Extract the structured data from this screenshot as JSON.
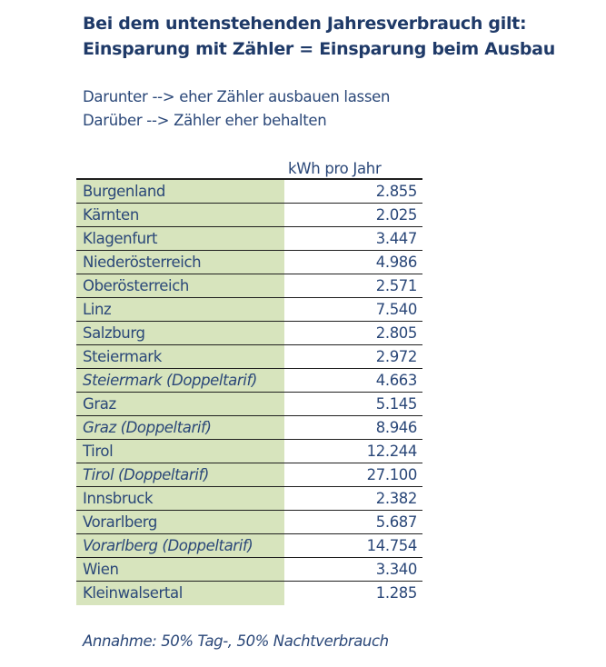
{
  "title": {
    "line1": "Bei dem untenstehenden Jahresverbrauch gilt:",
    "line2": "Einsparung mit Zähler = Einsparung beim Ausbau"
  },
  "intro": {
    "line1": "Darunter --> eher Zähler ausbauen lassen",
    "line2": "Darüber --> Zähler eher behalten"
  },
  "table": {
    "column_header": "kWh pro Jahr",
    "rows": [
      {
        "name": "Burgenland",
        "value": "2.855",
        "italic": false
      },
      {
        "name": "Kärnten",
        "value": "2.025",
        "italic": false
      },
      {
        "name": "Klagenfurt",
        "value": "3.447",
        "italic": false
      },
      {
        "name": "Niederösterreich",
        "value": "4.986",
        "italic": false
      },
      {
        "name": "Oberösterreich",
        "value": "2.571",
        "italic": false
      },
      {
        "name": "Linz",
        "value": "7.540",
        "italic": false
      },
      {
        "name": "Salzburg",
        "value": "2.805",
        "italic": false
      },
      {
        "name": "Steiermark",
        "value": "2.972",
        "italic": false
      },
      {
        "name": "Steiermark (Doppeltarif)",
        "value": "4.663",
        "italic": true
      },
      {
        "name": "Graz",
        "value": "5.145",
        "italic": false
      },
      {
        "name": "Graz (Doppeltarif)",
        "value": "8.946",
        "italic": true
      },
      {
        "name": "Tirol",
        "value": "12.244",
        "italic": false
      },
      {
        "name": "Tirol (Doppeltarif)",
        "value": "27.100",
        "italic": true
      },
      {
        "name": "Innsbruck",
        "value": "2.382",
        "italic": false
      },
      {
        "name": "Vorarlberg",
        "value": "5.687",
        "italic": false
      },
      {
        "name": "Vorarlberg (Doppeltarif)",
        "value": "14.754",
        "italic": true
      },
      {
        "name": "Wien",
        "value": "3.340",
        "italic": false
      },
      {
        "name": "Kleinwalsertal",
        "value": "1.285",
        "italic": false
      }
    ]
  },
  "footnote": "Annahme: 50% Tag-, 50% Nachtverbrauch",
  "colors": {
    "title": "#1f3a68",
    "text": "#2a4778",
    "name_cell_background": "#d7e4bd",
    "rule": "#1f1f1f"
  }
}
